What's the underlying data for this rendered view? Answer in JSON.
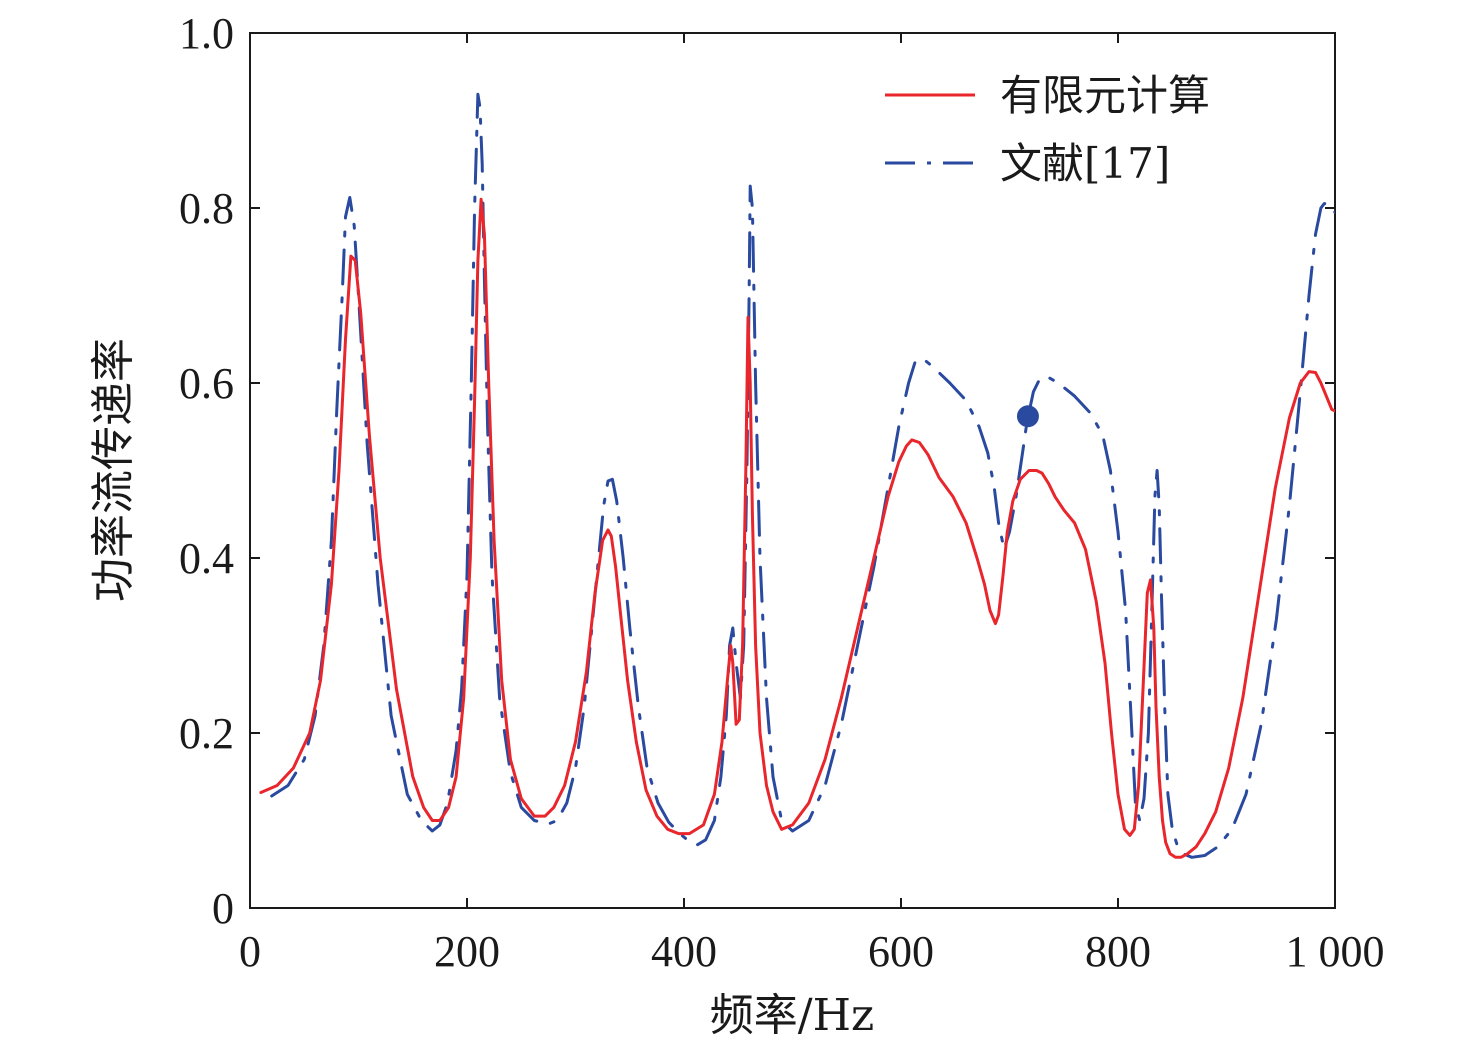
{
  "chart_data": {
    "type": "line",
    "xlabel": "频率/Hz",
    "ylabel": "功率流传递率",
    "xlim": [
      0,
      1000
    ],
    "ylim": [
      0,
      1.0
    ],
    "x_ticks": [
      0,
      200,
      400,
      600,
      800,
      1000
    ],
    "x_tick_labels": [
      "0",
      "200",
      "400",
      "600",
      "800",
      "1 000"
    ],
    "y_ticks": [
      0,
      0.2,
      0.4,
      0.6,
      0.8,
      1.0
    ],
    "y_tick_labels": [
      "0",
      "0.2",
      "0.4",
      "0.6",
      "0.8",
      "1.0"
    ],
    "grid": false,
    "legend_position": "top-right",
    "series": [
      {
        "name": "有限元计算",
        "color": "#e8262c",
        "dash": "solid",
        "x": [
          10,
          25,
          40,
          55,
          65,
          75,
          82,
          88,
          93,
          97,
          102,
          110,
          120,
          135,
          150,
          160,
          168,
          175,
          183,
          190,
          197,
          203,
          207,
          210,
          213,
          216,
          220,
          225,
          232,
          240,
          250,
          262,
          272,
          280,
          290,
          300,
          310,
          318,
          325,
          330,
          333,
          337,
          342,
          348,
          356,
          365,
          375,
          385,
          395,
          405,
          418,
          428,
          435,
          440,
          443,
          445,
          448,
          451,
          454,
          457,
          459,
          461,
          463,
          466,
          470,
          476,
          482,
          490,
          500,
          515,
          530,
          545,
          560,
          575,
          588,
          598,
          605,
          610,
          617,
          625,
          635,
          648,
          660,
          670,
          677,
          682,
          687,
          690,
          694,
          698,
          703,
          710,
          718,
          725,
          730,
          736,
          742,
          750,
          760,
          770,
          780,
          788,
          794,
          800,
          806,
          811,
          815,
          819,
          823,
          827,
          830,
          833,
          835,
          838,
          841,
          844,
          848,
          853,
          858,
          864,
          872,
          880,
          890,
          902,
          915,
          930,
          945,
          958,
          968,
          976,
          982,
          987,
          992,
          997,
          1000
        ],
        "y": [
          0.132,
          0.14,
          0.16,
          0.2,
          0.26,
          0.37,
          0.5,
          0.65,
          0.745,
          0.74,
          0.68,
          0.54,
          0.4,
          0.25,
          0.15,
          0.115,
          0.1,
          0.1,
          0.115,
          0.15,
          0.24,
          0.4,
          0.58,
          0.74,
          0.81,
          0.77,
          0.6,
          0.42,
          0.26,
          0.17,
          0.125,
          0.105,
          0.105,
          0.115,
          0.14,
          0.19,
          0.27,
          0.36,
          0.42,
          0.432,
          0.425,
          0.39,
          0.33,
          0.26,
          0.19,
          0.135,
          0.105,
          0.09,
          0.085,
          0.085,
          0.095,
          0.13,
          0.19,
          0.26,
          0.3,
          0.28,
          0.21,
          0.215,
          0.3,
          0.5,
          0.675,
          0.6,
          0.45,
          0.3,
          0.2,
          0.14,
          0.11,
          0.09,
          0.095,
          0.12,
          0.17,
          0.24,
          0.32,
          0.4,
          0.47,
          0.51,
          0.528,
          0.535,
          0.532,
          0.518,
          0.492,
          0.47,
          0.44,
          0.4,
          0.37,
          0.34,
          0.325,
          0.335,
          0.38,
          0.43,
          0.465,
          0.49,
          0.5,
          0.5,
          0.497,
          0.485,
          0.47,
          0.455,
          0.44,
          0.41,
          0.35,
          0.28,
          0.2,
          0.13,
          0.09,
          0.083,
          0.09,
          0.14,
          0.25,
          0.36,
          0.375,
          0.32,
          0.23,
          0.15,
          0.1,
          0.075,
          0.062,
          0.058,
          0.058,
          0.062,
          0.07,
          0.085,
          0.11,
          0.16,
          0.24,
          0.36,
          0.48,
          0.56,
          0.6,
          0.613,
          0.612,
          0.6,
          0.585,
          0.57,
          0.568
        ]
      },
      {
        "name": "文献[17]",
        "color": "#2a4aa0",
        "dash": "dash-dot",
        "x": [
          20,
          35,
          50,
          60,
          68,
          75,
          80,
          85,
          88,
          92,
          96,
          100,
          108,
          118,
          130,
          145,
          158,
          168,
          175,
          182,
          190,
          195,
          200,
          204,
          207,
          210,
          212,
          214,
          216,
          219,
          223,
          230,
          240,
          250,
          262,
          275,
          283,
          292,
          300,
          308,
          315,
          322,
          326,
          330,
          334,
          338,
          344,
          350,
          358,
          366,
          376,
          386,
          396,
          405,
          412,
          420,
          428,
          434,
          439,
          442,
          445,
          448,
          452,
          455,
          458,
          460,
          461,
          463,
          466,
          470,
          476,
          482,
          490,
          500,
          515,
          530,
          545,
          560,
          575,
          588,
          598,
          607,
          613,
          620,
          630,
          645,
          660,
          672,
          680,
          686,
          690,
          695,
          700,
          706,
          712,
          716,
          722,
          728,
          735,
          745,
          760,
          775,
          786,
          793,
          800,
          807,
          812,
          816,
          820,
          824,
          828,
          831,
          834,
          836,
          838,
          840,
          843,
          846,
          850,
          855,
          860,
          868,
          880,
          892,
          905,
          918,
          932,
          946,
          958,
          968,
          976,
          982,
          987,
          990,
          993,
          996,
          998,
          1000
        ],
        "y": [
          0.128,
          0.14,
          0.17,
          0.22,
          0.3,
          0.42,
          0.57,
          0.7,
          0.79,
          0.812,
          0.78,
          0.7,
          0.53,
          0.37,
          0.22,
          0.13,
          0.1,
          0.088,
          0.095,
          0.12,
          0.18,
          0.25,
          0.38,
          0.6,
          0.8,
          0.93,
          0.915,
          0.85,
          0.72,
          0.55,
          0.38,
          0.24,
          0.155,
          0.115,
          0.1,
          0.096,
          0.1,
          0.12,
          0.16,
          0.23,
          0.32,
          0.41,
          0.46,
          0.488,
          0.49,
          0.465,
          0.4,
          0.32,
          0.23,
          0.16,
          0.12,
          0.098,
          0.085,
          0.076,
          0.072,
          0.078,
          0.1,
          0.15,
          0.22,
          0.3,
          0.32,
          0.28,
          0.24,
          0.3,
          0.5,
          0.7,
          0.825,
          0.8,
          0.6,
          0.4,
          0.24,
          0.15,
          0.1,
          0.088,
          0.1,
          0.14,
          0.21,
          0.3,
          0.39,
          0.48,
          0.55,
          0.6,
          0.624,
          0.628,
          0.618,
          0.6,
          0.58,
          0.55,
          0.52,
          0.48,
          0.44,
          0.41,
          0.43,
          0.47,
          0.52,
          0.555,
          0.59,
          0.605,
          0.607,
          0.6,
          0.585,
          0.565,
          0.54,
          0.5,
          0.43,
          0.34,
          0.22,
          0.12,
          0.1,
          0.125,
          0.2,
          0.33,
          0.47,
          0.5,
          0.46,
          0.36,
          0.23,
          0.13,
          0.09,
          0.07,
          0.062,
          0.058,
          0.06,
          0.07,
          0.09,
          0.13,
          0.21,
          0.33,
          0.46,
          0.59,
          0.7,
          0.77,
          0.8,
          0.805,
          0.805,
          0.8,
          0.798,
          0.795
        ]
      }
    ],
    "markers": [
      {
        "x": 717,
        "y": 0.562,
        "color": "#2a4aa0"
      }
    ]
  }
}
